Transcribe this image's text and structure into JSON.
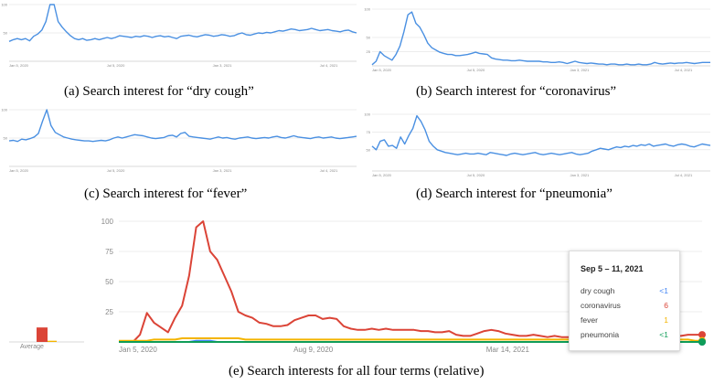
{
  "chart_data": [
    {
      "type": "line",
      "caption": "(a) Search interest for “dry cough”",
      "x_ticks": [
        "Jan 5, 2020",
        "Jul 5, 2020",
        "Jan 3, 2021",
        "Jul 4, 2021"
      ],
      "y_ticks": [
        100,
        50
      ],
      "ylim": [
        0,
        100
      ],
      "color": "#4a90e2",
      "values": [
        35,
        38,
        40,
        38,
        40,
        36,
        44,
        48,
        55,
        70,
        100,
        100,
        70,
        60,
        52,
        45,
        40,
        38,
        40,
        37,
        38,
        40,
        38,
        40,
        42,
        40,
        42,
        45,
        44,
        43,
        42,
        44,
        43,
        45,
        44,
        42,
        44,
        45,
        43,
        44,
        42,
        40,
        44,
        45,
        46,
        44,
        43,
        45,
        47,
        46,
        44,
        45,
        47,
        46,
        44,
        45,
        48,
        50,
        47,
        46,
        48,
        50,
        49,
        51,
        50,
        52,
        54,
        53,
        55,
        57,
        56,
        54,
        55,
        56,
        58,
        56,
        54,
        55,
        56,
        54,
        53,
        52,
        54,
        55,
        52,
        50
      ]
    },
    {
      "type": "line",
      "caption": "(b) Search interest for “coronavirus”",
      "x_ticks": [
        "Jan 5, 2020",
        "Jul 5, 2020",
        "Jan 3, 2021",
        "Jul 4, 2021"
      ],
      "y_ticks": [
        100,
        50,
        25
      ],
      "ylim": [
        0,
        100
      ],
      "color": "#4a90e2",
      "values": [
        2,
        8,
        25,
        18,
        14,
        10,
        20,
        35,
        60,
        90,
        95,
        75,
        68,
        55,
        40,
        32,
        28,
        24,
        22,
        20,
        20,
        18,
        18,
        19,
        20,
        22,
        24,
        22,
        21,
        20,
        14,
        12,
        11,
        10,
        10,
        9,
        9,
        10,
        9,
        8,
        8,
        8,
        8,
        7,
        7,
        6,
        6,
        7,
        6,
        4,
        6,
        8,
        6,
        5,
        4,
        5,
        4,
        3,
        3,
        2,
        3,
        3,
        2,
        2,
        3,
        2,
        2,
        3,
        2,
        2,
        3,
        6,
        4,
        3,
        4,
        5,
        4,
        5,
        5,
        6,
        5,
        4,
        5,
        6,
        6,
        6
      ]
    },
    {
      "type": "line",
      "caption": "(c) Search interest for “fever”",
      "x_ticks": [
        "Jan 5, 2020",
        "Jul 5, 2020",
        "Jan 3, 2021",
        "Jul 4, 2021"
      ],
      "y_ticks": [
        100,
        50
      ],
      "ylim": [
        0,
        100
      ],
      "color": "#4a90e2",
      "values": [
        45,
        46,
        44,
        48,
        47,
        49,
        52,
        58,
        80,
        100,
        72,
        60,
        56,
        52,
        50,
        48,
        47,
        46,
        45,
        45,
        44,
        45,
        46,
        45,
        47,
        50,
        52,
        50,
        52,
        54,
        56,
        55,
        54,
        52,
        50,
        49,
        50,
        51,
        54,
        55,
        52,
        58,
        60,
        53,
        52,
        51,
        50,
        49,
        48,
        50,
        52,
        50,
        51,
        49,
        48,
        50,
        51,
        52,
        50,
        49,
        50,
        51,
        50,
        52,
        53,
        51,
        50,
        52,
        54,
        52,
        51,
        50,
        49,
        51,
        52,
        50,
        51,
        52,
        50,
        49,
        50,
        51,
        52,
        53
      ]
    },
    {
      "type": "line",
      "caption": "(d) Search interest for “pneumonia”",
      "x_ticks": [
        "Jan 5, 2020",
        "Jul 5, 2020",
        "Jan 3, 2021",
        "Jul 4, 2021"
      ],
      "y_ticks": [
        100,
        75,
        50
      ],
      "ylim": [
        20,
        100
      ],
      "color": "#4a90e2",
      "values": [
        55,
        50,
        62,
        64,
        55,
        56,
        52,
        68,
        58,
        70,
        80,
        98,
        90,
        78,
        62,
        55,
        50,
        48,
        46,
        45,
        44,
        43,
        44,
        45,
        44,
        44,
        45,
        44,
        43,
        46,
        45,
        44,
        43,
        42,
        44,
        45,
        44,
        43,
        44,
        45,
        46,
        44,
        43,
        44,
        45,
        44,
        43,
        44,
        45,
        46,
        44,
        43,
        44,
        45,
        48,
        50,
        52,
        51,
        50,
        52,
        54,
        53,
        55,
        54,
        56,
        55,
        57,
        56,
        58,
        55,
        56,
        57,
        58,
        56,
        55,
        57,
        58,
        57,
        55,
        54,
        56,
        58,
        57,
        56
      ]
    },
    {
      "type": "line",
      "caption": "(e) Search interests for all four terms (relative)",
      "x_ticks": [
        "Jan 5, 2020",
        "Aug 9, 2020",
        "Mar 14, 2021"
      ],
      "y_ticks": [
        100,
        75,
        50,
        25
      ],
      "ylim": [
        0,
        100
      ],
      "average_label": "Average",
      "average": {
        "coronavirus": 12,
        "fever": 1
      },
      "series": [
        {
          "name": "coronavirus",
          "color": "#db4437",
          "values": [
            0,
            0,
            0,
            6,
            24,
            16,
            12,
            8,
            20,
            30,
            55,
            95,
            100,
            75,
            68,
            55,
            42,
            25,
            22,
            20,
            16,
            15,
            13,
            13,
            14,
            18,
            20,
            22,
            22,
            19,
            20,
            19,
            13,
            11,
            10,
            10,
            11,
            10,
            11,
            10,
            10,
            10,
            10,
            9,
            9,
            8,
            8,
            9,
            6,
            5,
            5,
            7,
            9,
            10,
            9,
            7,
            6,
            5,
            5,
            6,
            5,
            4,
            5,
            4,
            4,
            3,
            4,
            3,
            3,
            4,
            4,
            3,
            3,
            4,
            5,
            4,
            5,
            6,
            5,
            5,
            5,
            6,
            6,
            6
          ]
        },
        {
          "name": "fever",
          "color": "#f4b400",
          "values": [
            1,
            1,
            1,
            1,
            1,
            2,
            2,
            2,
            2,
            3,
            3,
            3,
            3,
            3,
            3,
            3,
            3,
            3,
            2,
            2,
            2,
            2,
            2,
            2,
            2,
            2,
            2,
            2,
            2,
            2,
            2,
            2,
            2,
            2,
            2,
            2,
            2,
            2,
            2,
            2,
            2,
            2,
            2,
            2,
            2,
            2,
            2,
            2,
            2,
            2,
            2,
            2,
            2,
            2,
            2,
            2,
            2,
            2,
            2,
            2,
            2,
            2,
            2,
            2,
            2,
            2,
            2,
            2,
            2,
            2,
            2,
            2,
            2,
            2,
            2,
            2,
            2,
            2,
            2,
            2,
            2,
            2,
            1,
            1
          ]
        },
        {
          "name": "dry cough",
          "color": "#4285f4",
          "values": [
            0,
            0,
            0,
            0,
            0,
            0,
            0,
            0,
            0,
            0,
            0,
            1,
            1,
            1,
            0,
            0,
            0,
            0,
            0,
            0,
            0,
            0,
            0,
            0,
            0,
            0,
            0,
            0,
            0,
            0,
            0,
            0,
            0,
            0,
            0,
            0,
            0,
            0,
            0,
            0,
            0,
            0,
            0,
            0,
            0,
            0,
            0,
            0,
            0,
            0,
            0,
            0,
            0,
            0,
            0,
            0,
            0,
            0,
            0,
            0,
            0,
            0,
            0,
            0,
            0,
            0,
            0,
            0,
            0,
            0,
            0,
            0,
            0,
            0,
            0,
            0,
            0,
            0,
            0,
            0,
            0,
            0,
            0,
            0
          ]
        },
        {
          "name": "pneumonia",
          "color": "#0f9d58",
          "values": [
            0,
            0,
            0,
            0,
            0,
            0,
            0,
            0,
            0,
            0,
            0,
            0,
            0,
            0,
            0,
            0,
            0,
            0,
            0,
            0,
            0,
            0,
            0,
            0,
            0,
            0,
            0,
            0,
            0,
            0,
            0,
            0,
            0,
            0,
            0,
            0,
            0,
            0,
            0,
            0,
            0,
            0,
            0,
            0,
            0,
            0,
            0,
            0,
            0,
            0,
            0,
            0,
            0,
            0,
            0,
            0,
            0,
            0,
            0,
            0,
            0,
            0,
            0,
            0,
            0,
            0,
            0,
            0,
            0,
            0,
            0,
            0,
            0,
            0,
            0,
            0,
            0,
            0,
            0,
            0,
            0,
            0,
            0,
            0
          ]
        }
      ],
      "tooltip": {
        "title": "Sep 5 – 11, 2021",
        "rows": [
          {
            "name": "dry cough",
            "value": "<1",
            "color": "#4285f4"
          },
          {
            "name": "coronavirus",
            "value": "6",
            "color": "#db4437"
          },
          {
            "name": "fever",
            "value": "1",
            "color": "#f4b400"
          },
          {
            "name": "pneumonia",
            "value": "<1",
            "color": "#0f9d58"
          }
        ]
      }
    }
  ]
}
